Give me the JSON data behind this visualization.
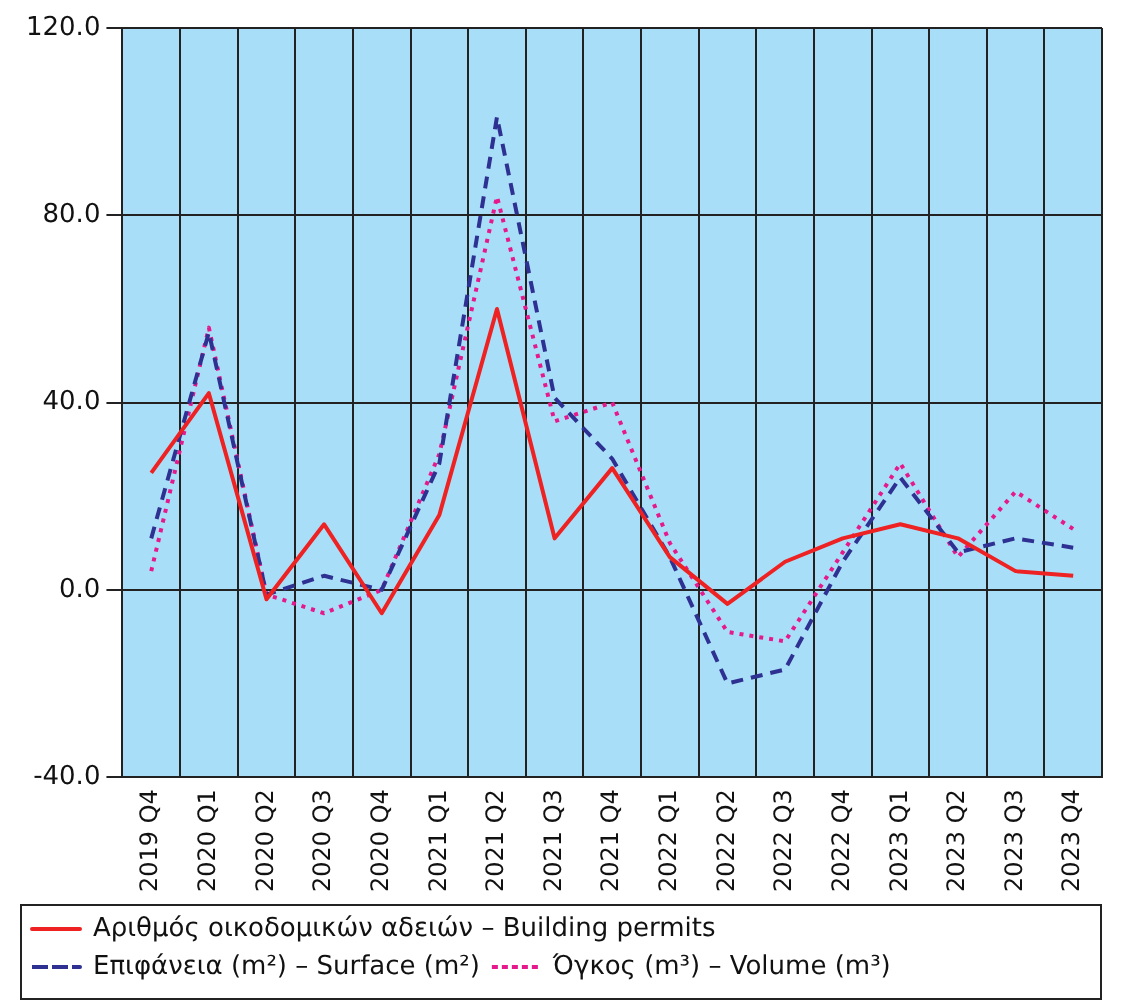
{
  "chart_data": {
    "type": "line",
    "categories": [
      "2019 Q4",
      "2020 Q1",
      "2020 Q2",
      "2020 Q3",
      "2020 Q4",
      "2021 Q1",
      "2021 Q2",
      "2021 Q3",
      "2021 Q4",
      "2022 Q1",
      "2022 Q2",
      "2022 Q3",
      "2022 Q4",
      "2023 Q1",
      "2023 Q2",
      "2023 Q3",
      "2023 Q4"
    ],
    "series": [
      {
        "name": "Αριθμός οικοδομικών αδειών – Building permits",
        "color": "#ee2222",
        "line_style": "solid",
        "values": [
          25,
          42,
          -2,
          14,
          -5,
          16,
          60,
          11,
          26,
          7,
          -3,
          6,
          11,
          14,
          11,
          4,
          3
        ]
      },
      {
        "name": "Επιφάνεια (m²) – Surface (m²)",
        "color": "#2e3192",
        "line_style": "dashed",
        "values": [
          11,
          55,
          -1,
          3,
          0,
          27,
          101,
          41,
          28,
          7,
          -20,
          -17,
          6,
          24,
          8,
          11,
          9
        ]
      },
      {
        "name": "Όγκος (m³) – Volume (m³)",
        "color": "#e6198c",
        "line_style": "dotted",
        "values": [
          4,
          56,
          -1,
          -5,
          0,
          29,
          84,
          36,
          40,
          10,
          -9,
          -11,
          8,
          27,
          7,
          21,
          13
        ]
      }
    ],
    "ylim": [
      -40,
      120
    ],
    "yticks": [
      {
        "value": -40,
        "label": "-40.0"
      },
      {
        "value": 0,
        "label": "0.0"
      },
      {
        "value": 40,
        "label": "40.0"
      },
      {
        "value": 80,
        "label": "80.0"
      },
      {
        "value": 120,
        "label": "120.0"
      }
    ],
    "grid": true,
    "legend": "bottom",
    "marker": "none"
  }
}
